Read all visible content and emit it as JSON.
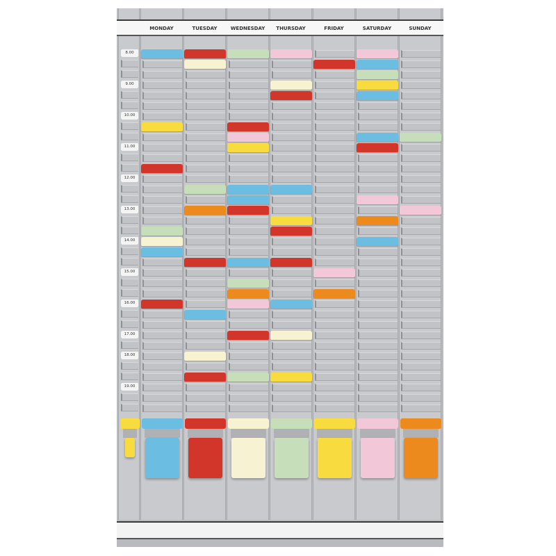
{
  "colors": {
    "blue": "#6cbde2",
    "red": "#d2352a",
    "green": "#c6dfba",
    "cream": "#f6f2d2",
    "pink": "#f2c7d7",
    "yellow": "#f8dc3f",
    "orange": "#ec8a1e"
  },
  "time_labels": [
    {
      "label": "8.00",
      "slot": 0
    },
    {
      "label": "9.00",
      "slot": 3
    },
    {
      "label": "10.00",
      "slot": 6
    },
    {
      "label": "11.00",
      "slot": 9
    },
    {
      "label": "12.00",
      "slot": 12
    },
    {
      "label": "13.00",
      "slot": 15
    },
    {
      "label": "14.00",
      "slot": 18
    },
    {
      "label": "15.00",
      "slot": 21
    },
    {
      "label": "16.00",
      "slot": 24
    },
    {
      "label": "17.00",
      "slot": 27
    },
    {
      "label": "18.00",
      "slot": 29
    },
    {
      "label": "19.00",
      "slot": 32
    }
  ],
  "time_column_card": "yellow",
  "days": [
    {
      "name": "MONDAY",
      "stock_color": "blue",
      "cards": [
        {
          "slot": 0,
          "color": "blue"
        },
        {
          "slot": 7,
          "color": "yellow"
        },
        {
          "slot": 11,
          "color": "red"
        },
        {
          "slot": 17,
          "color": "green"
        },
        {
          "slot": 18,
          "color": "cream"
        },
        {
          "slot": 19,
          "color": "blue"
        },
        {
          "slot": 24,
          "color": "red"
        }
      ]
    },
    {
      "name": "TUESDAY",
      "stock_color": "red",
      "cards": [
        {
          "slot": 0,
          "color": "red"
        },
        {
          "slot": 1,
          "color": "cream"
        },
        {
          "slot": 13,
          "color": "green"
        },
        {
          "slot": 15,
          "color": "orange"
        },
        {
          "slot": 20,
          "color": "red"
        },
        {
          "slot": 25,
          "color": "blue"
        },
        {
          "slot": 29,
          "color": "cream"
        },
        {
          "slot": 31,
          "color": "red"
        }
      ]
    },
    {
      "name": "WEDNESDAY",
      "stock_color": "cream",
      "cards": [
        {
          "slot": 0,
          "color": "green"
        },
        {
          "slot": 7,
          "color": "red"
        },
        {
          "slot": 8,
          "color": "pink"
        },
        {
          "slot": 9,
          "color": "yellow"
        },
        {
          "slot": 13,
          "color": "blue"
        },
        {
          "slot": 14,
          "color": "blue"
        },
        {
          "slot": 15,
          "color": "red"
        },
        {
          "slot": 20,
          "color": "blue"
        },
        {
          "slot": 22,
          "color": "green"
        },
        {
          "slot": 23,
          "color": "orange"
        },
        {
          "slot": 24,
          "color": "pink"
        },
        {
          "slot": 27,
          "color": "red"
        },
        {
          "slot": 31,
          "color": "green"
        }
      ]
    },
    {
      "name": "THURSDAY",
      "stock_color": "green",
      "cards": [
        {
          "slot": 0,
          "color": "pink"
        },
        {
          "slot": 3,
          "color": "cream"
        },
        {
          "slot": 4,
          "color": "red"
        },
        {
          "slot": 13,
          "color": "blue"
        },
        {
          "slot": 16,
          "color": "yellow"
        },
        {
          "slot": 17,
          "color": "red"
        },
        {
          "slot": 20,
          "color": "red"
        },
        {
          "slot": 24,
          "color": "blue"
        },
        {
          "slot": 27,
          "color": "cream"
        },
        {
          "slot": 31,
          "color": "yellow"
        }
      ]
    },
    {
      "name": "FRIDAY",
      "stock_color": "yellow",
      "cards": [
        {
          "slot": 1,
          "color": "red"
        },
        {
          "slot": 21,
          "color": "pink"
        },
        {
          "slot": 23,
          "color": "orange"
        }
      ]
    },
    {
      "name": "SATURDAY",
      "stock_color": "pink",
      "cards": [
        {
          "slot": 0,
          "color": "pink"
        },
        {
          "slot": 1,
          "color": "blue"
        },
        {
          "slot": 2,
          "color": "green"
        },
        {
          "slot": 3,
          "color": "yellow"
        },
        {
          "slot": 4,
          "color": "blue"
        },
        {
          "slot": 8,
          "color": "blue"
        },
        {
          "slot": 9,
          "color": "red"
        },
        {
          "slot": 14,
          "color": "pink"
        },
        {
          "slot": 16,
          "color": "orange"
        },
        {
          "slot": 18,
          "color": "blue"
        }
      ]
    },
    {
      "name": "SUNDAY",
      "stock_color": "orange",
      "cards": [
        {
          "slot": 8,
          "color": "green"
        },
        {
          "slot": 15,
          "color": "pink"
        }
      ]
    }
  ]
}
